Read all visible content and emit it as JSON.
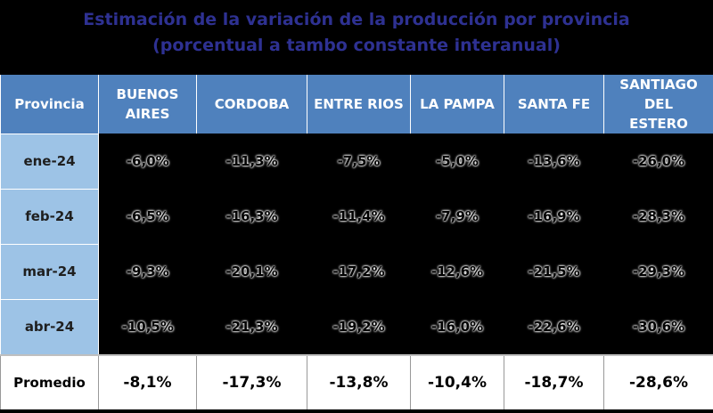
{
  "title_line1": "Estimación de la variación de la producción por provincia",
  "title_line2": "(porcentual a tambo constante interanual)",
  "chart_data": {
    "type": "table",
    "columns": [
      "Provincia",
      "BUENOS AIRES",
      "CORDOBA",
      "ENTRE RIOS",
      "LA PAMPA",
      "SANTA FE",
      "SANTIAGO DEL ESTERO"
    ],
    "rows": [
      {
        "label": "ene-24",
        "values": [
          "-6,0%",
          "-11,3%",
          "-7,5%",
          "-5,0%",
          "-13,6%",
          "-26,0%"
        ]
      },
      {
        "label": "feb-24",
        "values": [
          "-6,5%",
          "-16,3%",
          "-11,4%",
          "-7,9%",
          "-16,9%",
          "-28,3%"
        ]
      },
      {
        "label": "mar-24",
        "values": [
          "-9,3%",
          "-20,1%",
          "-17,2%",
          "-12,6%",
          "-21,5%",
          "-29,3%"
        ]
      },
      {
        "label": "abr-24",
        "values": [
          "-10,5%",
          "-21,3%",
          "-19,2%",
          "-16,0%",
          "-22,6%",
          "-30,6%"
        ]
      }
    ],
    "average": {
      "label": "Promedio",
      "values": [
        "-8,1%",
        "-17,3%",
        "-13,8%",
        "-10,4%",
        "-18,7%",
        "-28,6%"
      ]
    }
  }
}
